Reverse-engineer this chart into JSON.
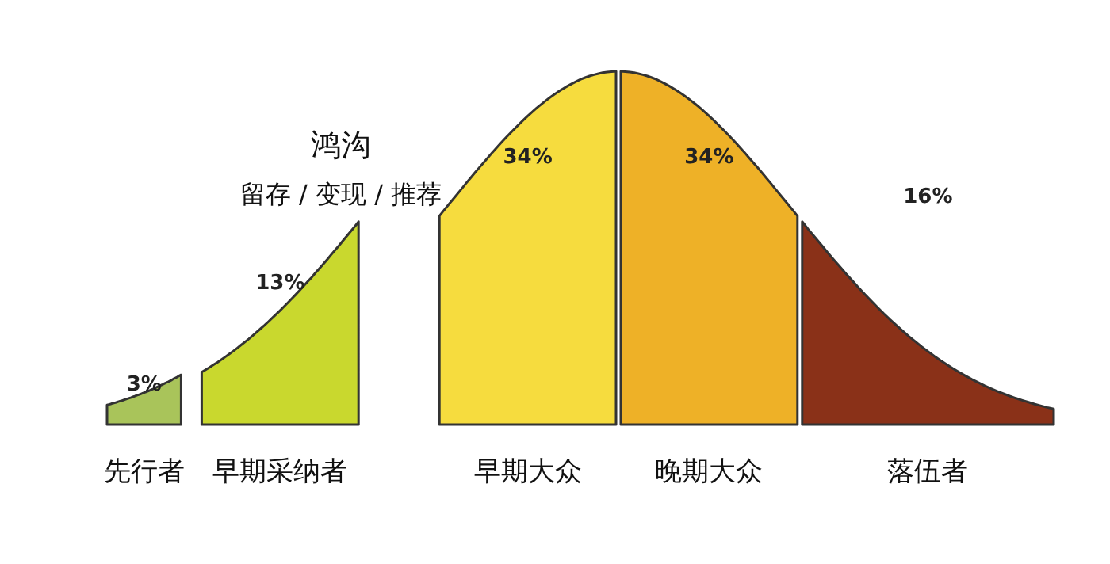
{
  "chart_data": {
    "type": "other",
    "categories": [
      "先行者",
      "早期采纳者",
      "早期大众",
      "晚期大众",
      "落伍者"
    ],
    "values": [
      3,
      13,
      34,
      34,
      16
    ],
    "colors": [
      "#a9c45a",
      "#c9d82e",
      "#f6dc3e",
      "#eeb127",
      "#8a3118"
    ],
    "value_labels": [
      "3%",
      "13%",
      "34%",
      "34%",
      "16%"
    ],
    "annotations": [
      "鸿沟",
      "留存 / 变现 / 推荐"
    ]
  }
}
